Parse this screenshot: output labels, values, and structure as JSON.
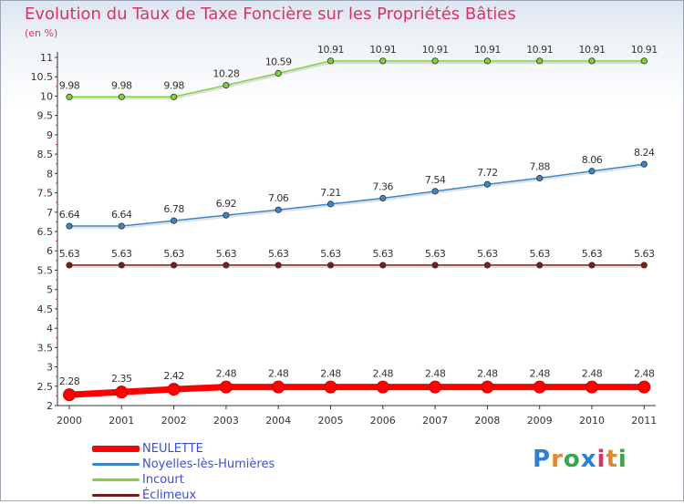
{
  "title": "Evolution du Taux de Taxe Foncière sur les Propriétés Bâties",
  "subtitle": "(en %)",
  "logo": {
    "text": "Proxiti",
    "colors": [
      "#2d7fd1",
      "#e0892c",
      "#3aa64b",
      "#2d7fd1",
      "#d6336c",
      "#e0892c",
      "#3aa64b"
    ]
  },
  "chart_data": {
    "type": "line",
    "x": [
      "2000",
      "2001",
      "2002",
      "2003",
      "2004",
      "2005",
      "2006",
      "2007",
      "2008",
      "2009",
      "2010",
      "2011"
    ],
    "ylim": [
      2,
      11
    ],
    "yticks": [
      "2",
      "2.5",
      "3",
      "3.5",
      "4",
      "4.5",
      "5",
      "5.5",
      "6",
      "6.5",
      "7",
      "7.5",
      "8",
      "8.5",
      "9",
      "9.5",
      "10",
      "10.5",
      "11"
    ],
    "ytick_values": [
      2,
      2.5,
      3,
      3.5,
      4,
      4.5,
      5,
      5.5,
      6,
      6.5,
      7,
      7.5,
      8,
      8.5,
      9,
      9.5,
      10,
      10.5,
      11
    ],
    "legend_position": "bottom-left",
    "grid": false,
    "series": [
      {
        "name": "NEULETTE",
        "color": "#ff0000",
        "emphasis": true,
        "values": [
          2.28,
          2.35,
          2.42,
          2.48,
          2.48,
          2.48,
          2.48,
          2.48,
          2.48,
          2.48,
          2.48,
          2.48
        ],
        "labels": [
          "2.28",
          "2.35",
          "2.42",
          "2.48",
          "2.48",
          "2.48",
          "2.48",
          "2.48",
          "2.48",
          "2.48",
          "2.48",
          "2.48"
        ]
      },
      {
        "name": "Noyelles-lès-Humières",
        "color": "#3d86c6",
        "emphasis": false,
        "values": [
          6.64,
          6.64,
          6.78,
          6.92,
          7.06,
          7.21,
          7.36,
          7.54,
          7.72,
          7.88,
          8.06,
          8.24
        ],
        "labels": [
          "6.64",
          "6.64",
          "6.78",
          "6.92",
          "7.06",
          "7.21",
          "7.36",
          "7.54",
          "7.72",
          "7.88",
          "8.06",
          "8.24"
        ]
      },
      {
        "name": "Incourt",
        "color": "#7fd13b",
        "emphasis": false,
        "values": [
          9.98,
          9.98,
          9.98,
          10.28,
          10.59,
          10.91,
          10.91,
          10.91,
          10.91,
          10.91,
          10.91,
          10.91
        ],
        "labels": [
          "9.98",
          "9.98",
          "9.98",
          "10.28",
          "10.59",
          "10.91",
          "10.91",
          "10.91",
          "10.91",
          "10.91",
          "10.91",
          "10.91"
        ]
      },
      {
        "name": "Éclimeux",
        "color": "#7a1a1a",
        "emphasis": false,
        "values": [
          5.63,
          5.63,
          5.63,
          5.63,
          5.63,
          5.63,
          5.63,
          5.63,
          5.63,
          5.63,
          5.63,
          5.63
        ],
        "labels": [
          "5.63",
          "5.63",
          "5.63",
          "5.63",
          "5.63",
          "5.63",
          "5.63",
          "5.63",
          "5.63",
          "5.63",
          "5.63",
          "5.63"
        ]
      }
    ]
  }
}
